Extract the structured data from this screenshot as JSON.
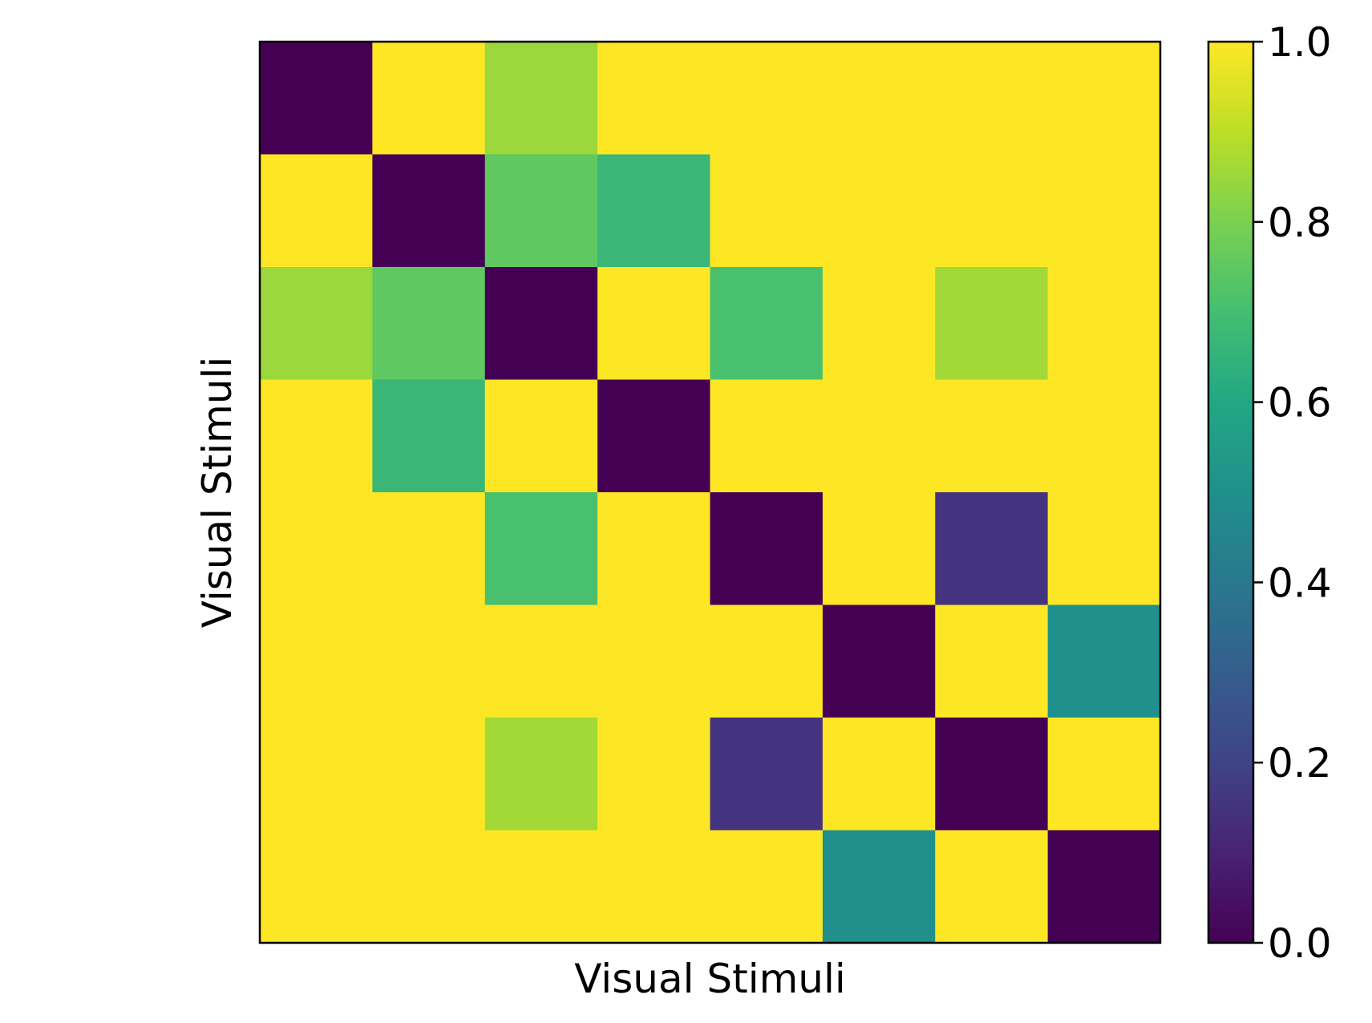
{
  "chart_data": {
    "type": "heatmap",
    "xlabel": "Visual Stimuli",
    "ylabel": "Visual Stimuli",
    "colormap": "viridis",
    "vmin": 0.0,
    "vmax": 1.0,
    "rows": 8,
    "cols": 8,
    "matrix": [
      [
        0.0,
        1.0,
        0.85,
        1.0,
        1.0,
        1.0,
        1.0,
        1.0
      ],
      [
        1.0,
        0.0,
        0.75,
        0.67,
        1.0,
        1.0,
        1.0,
        1.0
      ],
      [
        0.85,
        0.75,
        0.0,
        1.0,
        0.71,
        1.0,
        0.86,
        1.0
      ],
      [
        1.0,
        0.67,
        1.0,
        0.0,
        1.0,
        1.0,
        1.0,
        1.0
      ],
      [
        1.0,
        1.0,
        0.71,
        1.0,
        0.0,
        1.0,
        0.15,
        1.0
      ],
      [
        1.0,
        1.0,
        1.0,
        1.0,
        1.0,
        0.0,
        1.0,
        0.5
      ],
      [
        1.0,
        1.0,
        0.86,
        1.0,
        0.15,
        1.0,
        0.0,
        1.0
      ],
      [
        1.0,
        1.0,
        1.0,
        1.0,
        1.0,
        0.5,
        1.0,
        0.0
      ]
    ],
    "colorbar": {
      "ticks": [
        0.0,
        0.2,
        0.4,
        0.6,
        0.8,
        1.0
      ],
      "tick_labels": [
        "0.0",
        "0.2",
        "0.4",
        "0.6",
        "0.8",
        "1.0"
      ]
    },
    "grid": false,
    "x_ticks_visible": false,
    "y_ticks_visible": false
  }
}
